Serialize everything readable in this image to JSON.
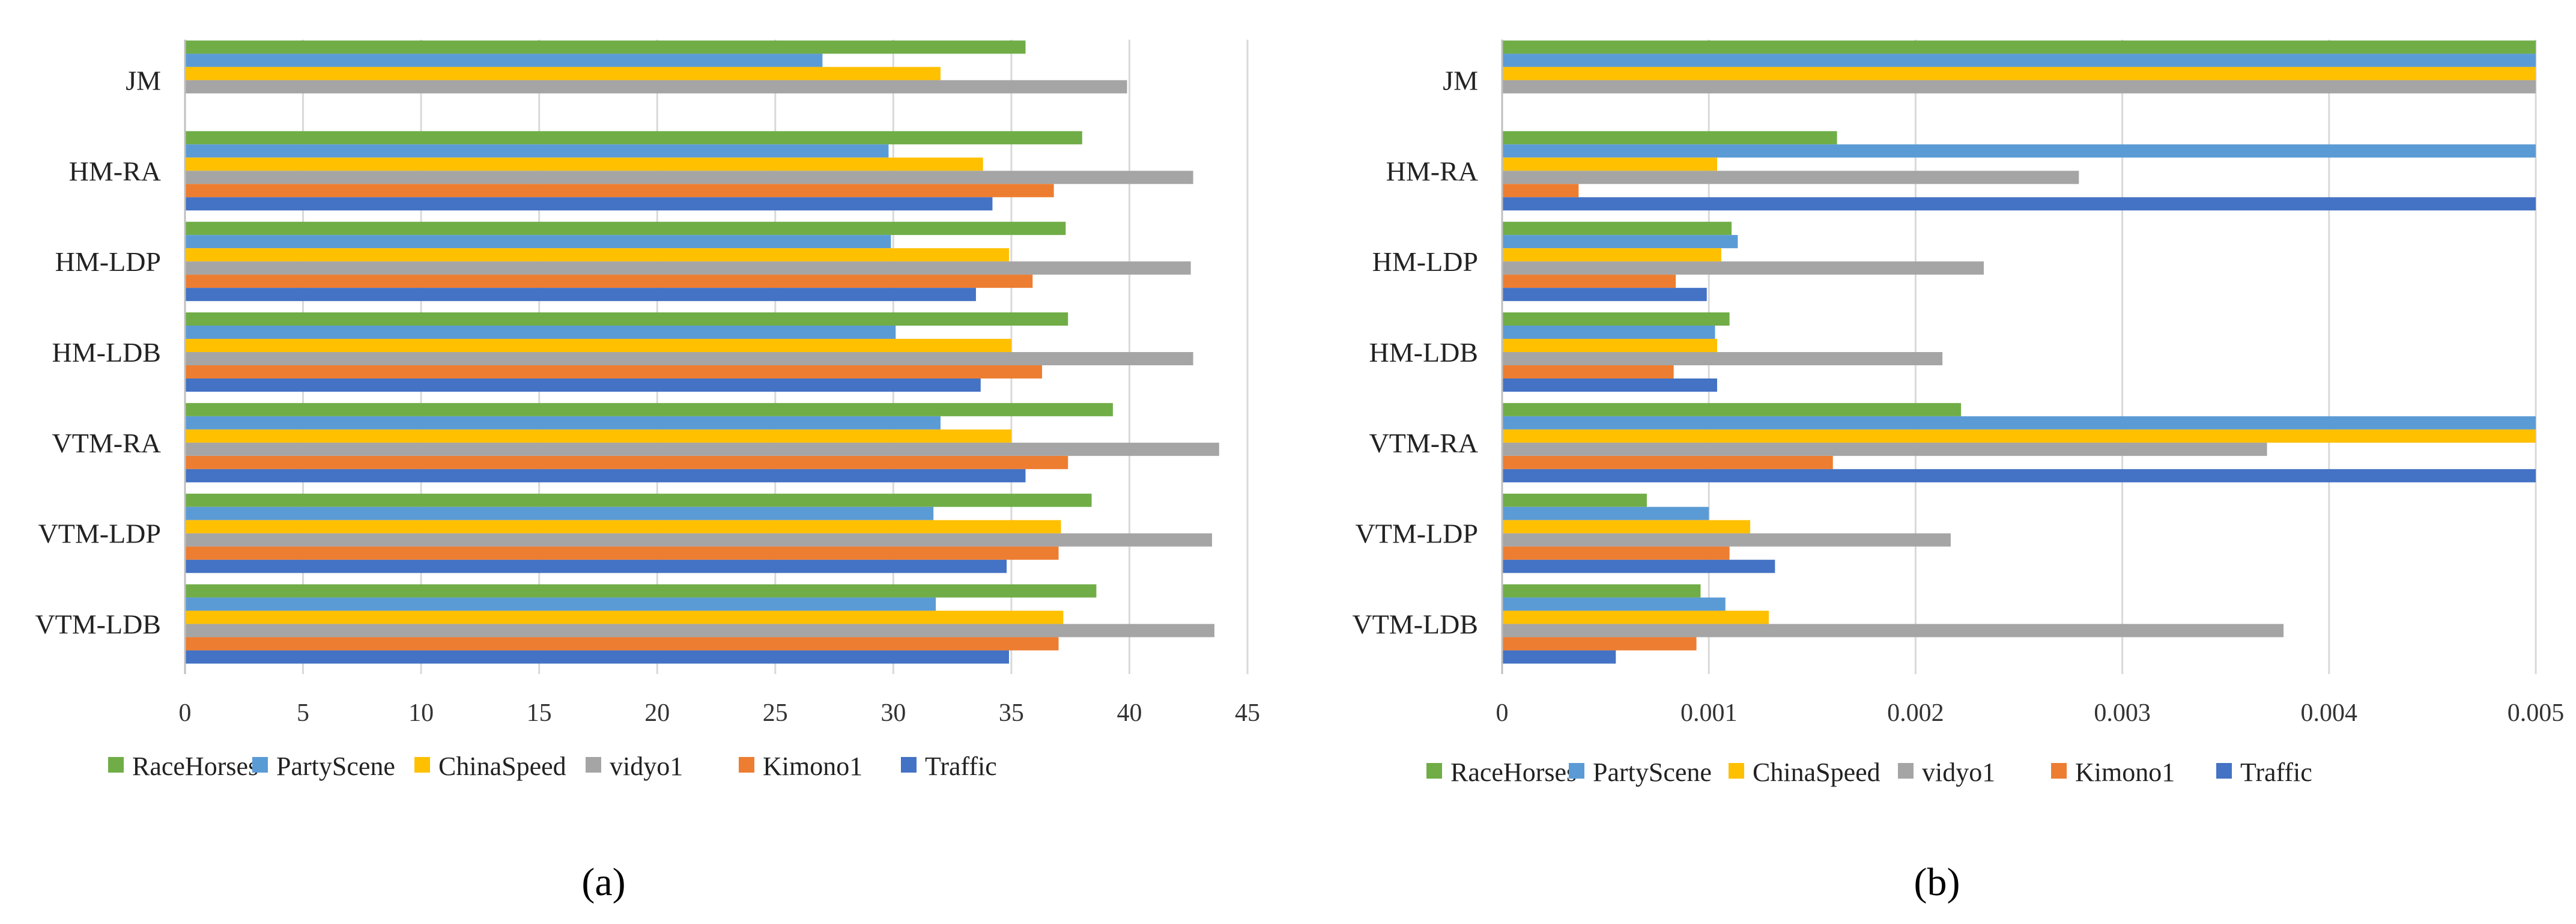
{
  "chart_data": [
    {
      "type": "bar",
      "orientation": "horizontal",
      "panel_label": "(a)",
      "categories": [
        "JM",
        "HM-RA",
        "HM-LDP",
        "HM-LDB",
        "VTM-RA",
        "VTM-LDP",
        "VTM-LDB"
      ],
      "xlim": [
        0,
        45
      ],
      "xticks": [
        0,
        5,
        10,
        15,
        20,
        25,
        30,
        35,
        40,
        45
      ],
      "grid": "vertical",
      "legend_position": "bottom",
      "series": [
        {
          "name": "RaceHorses",
          "color": "#70ad47",
          "values": [
            35.6,
            38.0,
            37.3,
            37.4,
            39.3,
            38.4,
            38.6
          ]
        },
        {
          "name": "PartyScene",
          "color": "#5b9bd5",
          "values": [
            27.0,
            29.8,
            29.9,
            30.1,
            32.0,
            31.7,
            31.8
          ]
        },
        {
          "name": "ChinaSpeed",
          "color": "#ffc000",
          "values": [
            32.0,
            33.8,
            34.9,
            35.0,
            35.0,
            37.1,
            37.2
          ]
        },
        {
          "name": "vidyo1",
          "color": "#a5a5a5",
          "values": [
            39.9,
            42.7,
            42.6,
            42.7,
            43.8,
            43.5,
            43.6
          ]
        },
        {
          "name": "Kimono1",
          "color": "#ed7d31",
          "values": [
            null,
            36.8,
            35.9,
            36.3,
            37.4,
            37.0,
            37.0
          ]
        },
        {
          "name": "Traffic",
          "color": "#4472c4",
          "values": [
            null,
            34.2,
            33.5,
            33.7,
            35.6,
            34.8,
            34.9
          ]
        }
      ]
    },
    {
      "type": "bar",
      "orientation": "horizontal",
      "panel_label": "(b)",
      "categories": [
        "JM",
        "HM-RA",
        "HM-LDP",
        "HM-LDB",
        "VTM-RA",
        "VTM-LDP",
        "VTM-LDB"
      ],
      "xlim": [
        0,
        0.005
      ],
      "xticks": [
        0,
        0.001,
        0.002,
        0.003,
        0.004,
        0.005
      ],
      "grid": "vertical",
      "legend_position": "bottom",
      "series": [
        {
          "name": "RaceHorses",
          "color": "#70ad47",
          "values": [
            0.005,
            0.00162,
            0.00111,
            0.0011,
            0.00222,
            0.0007,
            0.00096
          ]
        },
        {
          "name": "PartyScene",
          "color": "#5b9bd5",
          "values": [
            0.005,
            0.005,
            0.00114,
            0.00103,
            0.005,
            0.001,
            0.00108
          ]
        },
        {
          "name": "ChinaSpeed",
          "color": "#ffc000",
          "values": [
            0.005,
            0.00104,
            0.00106,
            0.00104,
            0.005,
            0.0012,
            0.00129
          ]
        },
        {
          "name": "vidyo1",
          "color": "#a5a5a5",
          "values": [
            0.005,
            0.00279,
            0.00233,
            0.00213,
            0.0037,
            0.00217,
            0.00378
          ]
        },
        {
          "name": "Kimono1",
          "color": "#ed7d31",
          "values": [
            null,
            0.00037,
            0.00084,
            0.00083,
            0.0016,
            0.0011,
            0.00094
          ]
        },
        {
          "name": "Traffic",
          "color": "#4472c4",
          "values": [
            null,
            0.005,
            0.00099,
            0.00104,
            0.005,
            0.00132,
            0.00055
          ]
        }
      ]
    }
  ]
}
